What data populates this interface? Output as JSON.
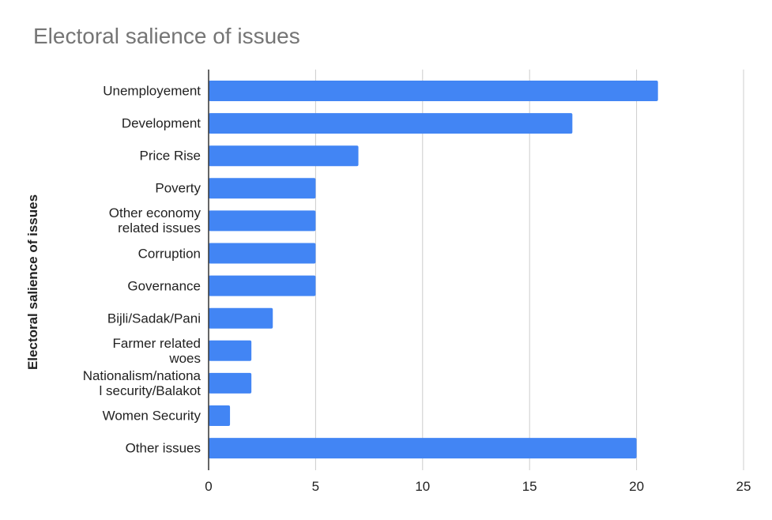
{
  "chart_data": {
    "type": "bar",
    "orientation": "horizontal",
    "title": "Electoral salience of issues",
    "xlabel": "",
    "ylabel": "Electoral salience of issues",
    "categories": [
      "Unemployement",
      "Development",
      "Price Rise",
      "Poverty",
      "Other economy\nrelated issues",
      "Corruption",
      "Governance",
      "Bijli/Sadak/Pani",
      "Farmer related\nwoes",
      "Nationalism/nationa\nl security/Balakot",
      "Women Security",
      "Other issues"
    ],
    "values": [
      21,
      17,
      7,
      5,
      5,
      5,
      5,
      3,
      2,
      2,
      1,
      20
    ],
    "xlim": [
      0,
      25
    ],
    "xticks": [
      "0",
      "5",
      "10",
      "15",
      "20",
      "25"
    ],
    "grid": true,
    "legend": "none",
    "bar_color": "#4285f4"
  }
}
